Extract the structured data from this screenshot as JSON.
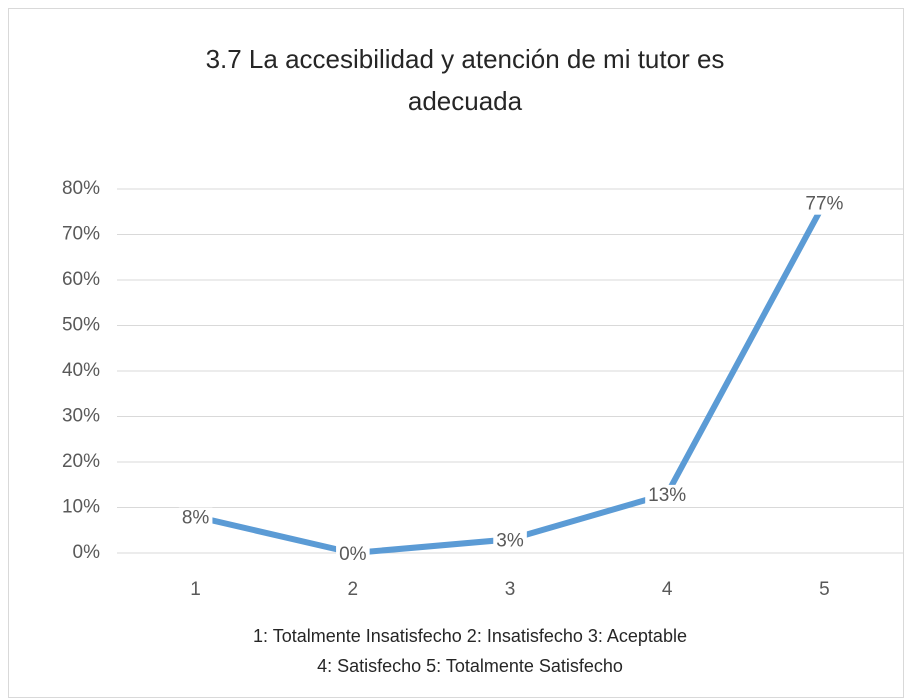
{
  "chart_data": {
    "type": "line",
    "title": "3.7 La accesibilidad y atención de mi tutor es adecuada",
    "categories": [
      "1",
      "2",
      "3",
      "4",
      "5"
    ],
    "series": [
      {
        "name": "Series",
        "color": "#5b9bd5",
        "values": [
          8,
          0,
          3,
          13,
          77
        ],
        "value_labels": [
          "8%",
          "0%",
          "3%",
          "13%",
          "77%"
        ]
      }
    ],
    "ylim": [
      0,
      80
    ],
    "yticks": [
      {
        "value": 0,
        "label": "0%"
      },
      {
        "value": 10,
        "label": "10%"
      },
      {
        "value": 20,
        "label": "20%"
      },
      {
        "value": 30,
        "label": "30%"
      },
      {
        "value": 40,
        "label": "40%"
      },
      {
        "value": 50,
        "label": "50%"
      },
      {
        "value": 60,
        "label": "60%"
      },
      {
        "value": 70,
        "label": "70%"
      },
      {
        "value": 80,
        "label": "80%"
      }
    ],
    "grid": true,
    "notes": [
      "1: Totalmente Insatisfecho  2: Insatisfecho  3: Aceptable",
      "4: Satisfecho  5: Totalmente Satisfecho"
    ]
  }
}
